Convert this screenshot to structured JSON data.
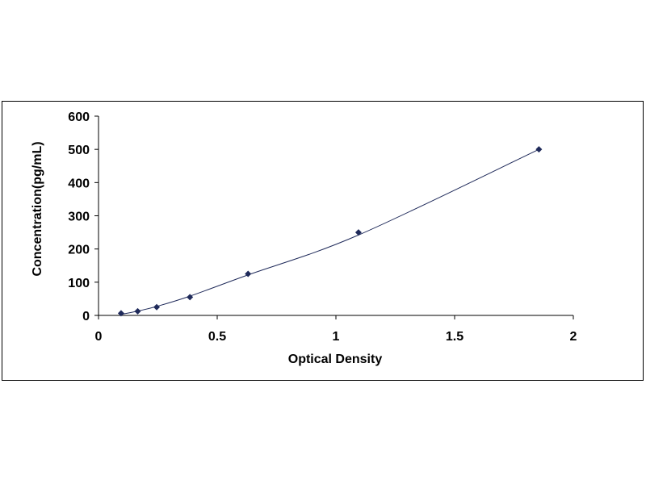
{
  "chart_data": {
    "type": "scatter",
    "title": "",
    "xlabel": "Optical Density",
    "ylabel": "Concentration(pg/mL)",
    "xlim": [
      0,
      2
    ],
    "ylim": [
      0,
      600
    ],
    "x_ticks": [
      "0",
      "0.5",
      "1",
      "1.5",
      "2"
    ],
    "y_ticks": [
      "0",
      "100",
      "200",
      "300",
      "400",
      "500",
      "600"
    ],
    "grid": false,
    "legend": "none",
    "marker_color": "#1f2a5a",
    "line_color": "#1f2a5a",
    "points": [
      {
        "x": 0.095,
        "y": 6.25
      },
      {
        "x": 0.165,
        "y": 12.5
      },
      {
        "x": 0.245,
        "y": 25
      },
      {
        "x": 0.385,
        "y": 55
      },
      {
        "x": 0.63,
        "y": 125
      },
      {
        "x": 1.095,
        "y": 250
      },
      {
        "x": 1.855,
        "y": 500
      }
    ],
    "trendline": [
      {
        "x": 0.095,
        "y": 3
      },
      {
        "x": 0.165,
        "y": 13
      },
      {
        "x": 0.245,
        "y": 27
      },
      {
        "x": 0.385,
        "y": 58
      },
      {
        "x": 0.63,
        "y": 122
      },
      {
        "x": 1.095,
        "y": 242
      },
      {
        "x": 1.855,
        "y": 500
      }
    ]
  }
}
